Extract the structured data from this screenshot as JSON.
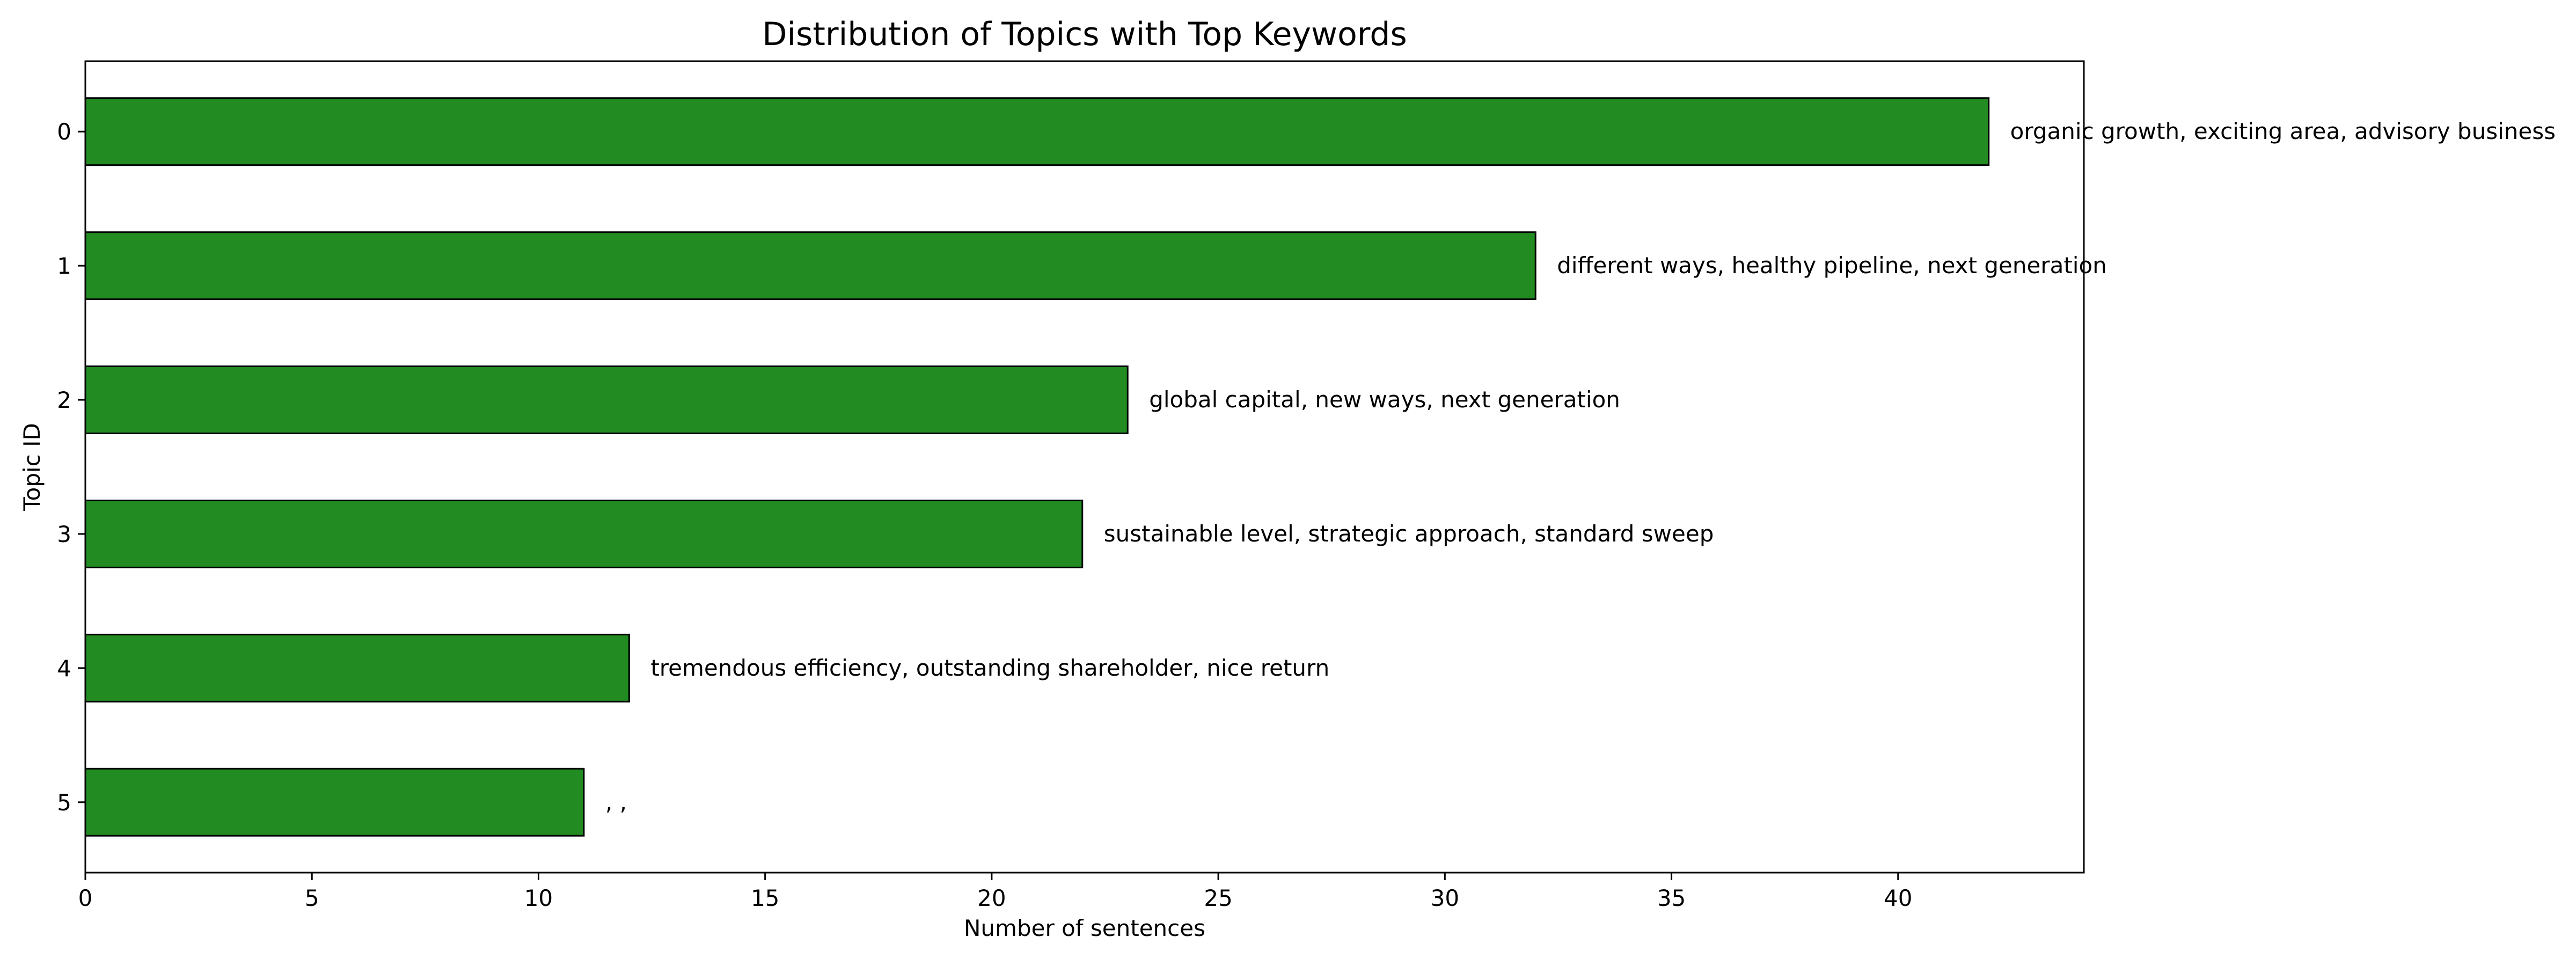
{
  "chart_data": {
    "type": "bar",
    "orientation": "horizontal",
    "title": "Distribution of Topics with Top Keywords",
    "xlabel": "Number of sentences",
    "ylabel": "Topic ID",
    "categories": [
      "0",
      "1",
      "2",
      "3",
      "4",
      "5"
    ],
    "values": [
      42,
      32,
      23,
      22,
      12,
      11
    ],
    "bar_labels": [
      "organic growth, exciting area, advisory business",
      "different ways, healthy pipeline, next generation",
      "global capital, new ways, next generation",
      "sustainable level, strategic approach, standard sweep",
      "tremendous efficiency, outstanding shareholder, nice return",
      ", ,"
    ],
    "xlim": [
      0,
      44.1
    ],
    "xticks": [
      "0",
      "5",
      "10",
      "15",
      "20",
      "25",
      "30",
      "35",
      "40"
    ],
    "grid": false,
    "legend": "none",
    "bar_color": "#228B22",
    "edge_color": "#000000"
  }
}
